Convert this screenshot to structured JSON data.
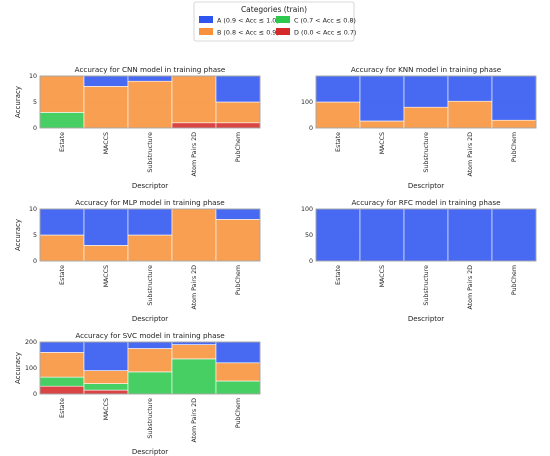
{
  "legend": {
    "title": "Categories (train)",
    "entries": [
      {
        "key": "A",
        "label": "A (0.9 < Acc ≤ 1.0)",
        "color": "#2f55f0"
      },
      {
        "key": "B",
        "label": "B (0.8 < Acc ≤ 0.9)",
        "color": "#f7923a"
      },
      {
        "key": "C",
        "label": "C (0.7 < Acc ≤ 0.8)",
        "color": "#2fc84e"
      },
      {
        "key": "D",
        "label": "D (0.0 < Acc ≤ 0.7)",
        "color": "#d42a2a"
      }
    ]
  },
  "chart_data": [
    {
      "type": "bar",
      "stacked": true,
      "title": "Accuracy for CNN model in training phase",
      "xlabel": "Descriptor",
      "ylabel": "Accuracy",
      "categories": [
        "Estate",
        "MACCS",
        "Substructure",
        "Atom Pairs 2D",
        "PubChem"
      ],
      "ylim": [
        0,
        10
      ],
      "yticks": [
        0,
        5,
        10
      ],
      "series": [
        {
          "name": "D",
          "values": [
            0,
            0,
            0,
            1,
            1
          ]
        },
        {
          "name": "C",
          "values": [
            3,
            0,
            0,
            0,
            0
          ]
        },
        {
          "name": "B",
          "values": [
            7,
            8,
            9,
            9,
            4
          ]
        },
        {
          "name": "A",
          "values": [
            0,
            2,
            1,
            0,
            5
          ]
        }
      ]
    },
    {
      "type": "bar",
      "stacked": true,
      "title": "Accuracy for KNN model in training phase",
      "xlabel": "Descriptor",
      "ylabel": "",
      "categories": [
        "Estate",
        "MACCS",
        "Substructure",
        "Atom Pairs 2D",
        "PubChem"
      ],
      "ylim": [
        0,
        200
      ],
      "yticks": [
        0,
        100
      ],
      "series": [
        {
          "name": "D",
          "values": [
            0,
            0,
            0,
            0,
            0
          ]
        },
        {
          "name": "C",
          "values": [
            0,
            0,
            0,
            0,
            0
          ]
        },
        {
          "name": "B",
          "values": [
            100,
            27,
            80,
            103,
            30
          ]
        },
        {
          "name": "A",
          "values": [
            100,
            173,
            120,
            97,
            170
          ]
        }
      ]
    },
    {
      "type": "bar",
      "stacked": true,
      "title": "Accuracy for MLP model in training phase",
      "xlabel": "Descriptor",
      "ylabel": "Accuracy",
      "categories": [
        "Estate",
        "MACCS",
        "Substructure",
        "Atom Pairs 2D",
        "PubChem"
      ],
      "ylim": [
        0,
        10
      ],
      "yticks": [
        0,
        5,
        10
      ],
      "series": [
        {
          "name": "D",
          "values": [
            0,
            0,
            0,
            0,
            0
          ]
        },
        {
          "name": "C",
          "values": [
            0,
            0,
            0,
            0,
            0
          ]
        },
        {
          "name": "B",
          "values": [
            5,
            3,
            5,
            10,
            8
          ]
        },
        {
          "name": "A",
          "values": [
            5,
            7,
            5,
            0,
            2
          ]
        }
      ]
    },
    {
      "type": "bar",
      "stacked": true,
      "title": "Accuracy for RFC model in training phase",
      "xlabel": "Descriptor",
      "ylabel": "",
      "categories": [
        "Estate",
        "MACCS",
        "Substructure",
        "Atom Pairs 2D",
        "PubChem"
      ],
      "ylim": [
        0,
        100
      ],
      "yticks": [
        0,
        50,
        100
      ],
      "series": [
        {
          "name": "D",
          "values": [
            0,
            0,
            0,
            0,
            0
          ]
        },
        {
          "name": "C",
          "values": [
            0,
            0,
            0,
            0,
            0
          ]
        },
        {
          "name": "B",
          "values": [
            0,
            0,
            0,
            0,
            0
          ]
        },
        {
          "name": "A",
          "values": [
            100,
            100,
            100,
            100,
            100
          ]
        }
      ]
    },
    {
      "type": "bar",
      "stacked": true,
      "title": "Accuracy for SVC model in training phase",
      "xlabel": "Descriptor",
      "ylabel": "Accuracy",
      "categories": [
        "Estate",
        "MACCS",
        "Substructure",
        "Atom Pairs 2D",
        "PubChem"
      ],
      "ylim": [
        0,
        200
      ],
      "yticks": [
        0,
        100,
        200
      ],
      "series": [
        {
          "name": "D",
          "values": [
            30,
            15,
            0,
            0,
            0
          ]
        },
        {
          "name": "C",
          "values": [
            35,
            25,
            85,
            135,
            50
          ]
        },
        {
          "name": "B",
          "values": [
            95,
            50,
            90,
            55,
            70
          ]
        },
        {
          "name": "A",
          "values": [
            40,
            110,
            25,
            10,
            80
          ]
        }
      ]
    }
  ]
}
